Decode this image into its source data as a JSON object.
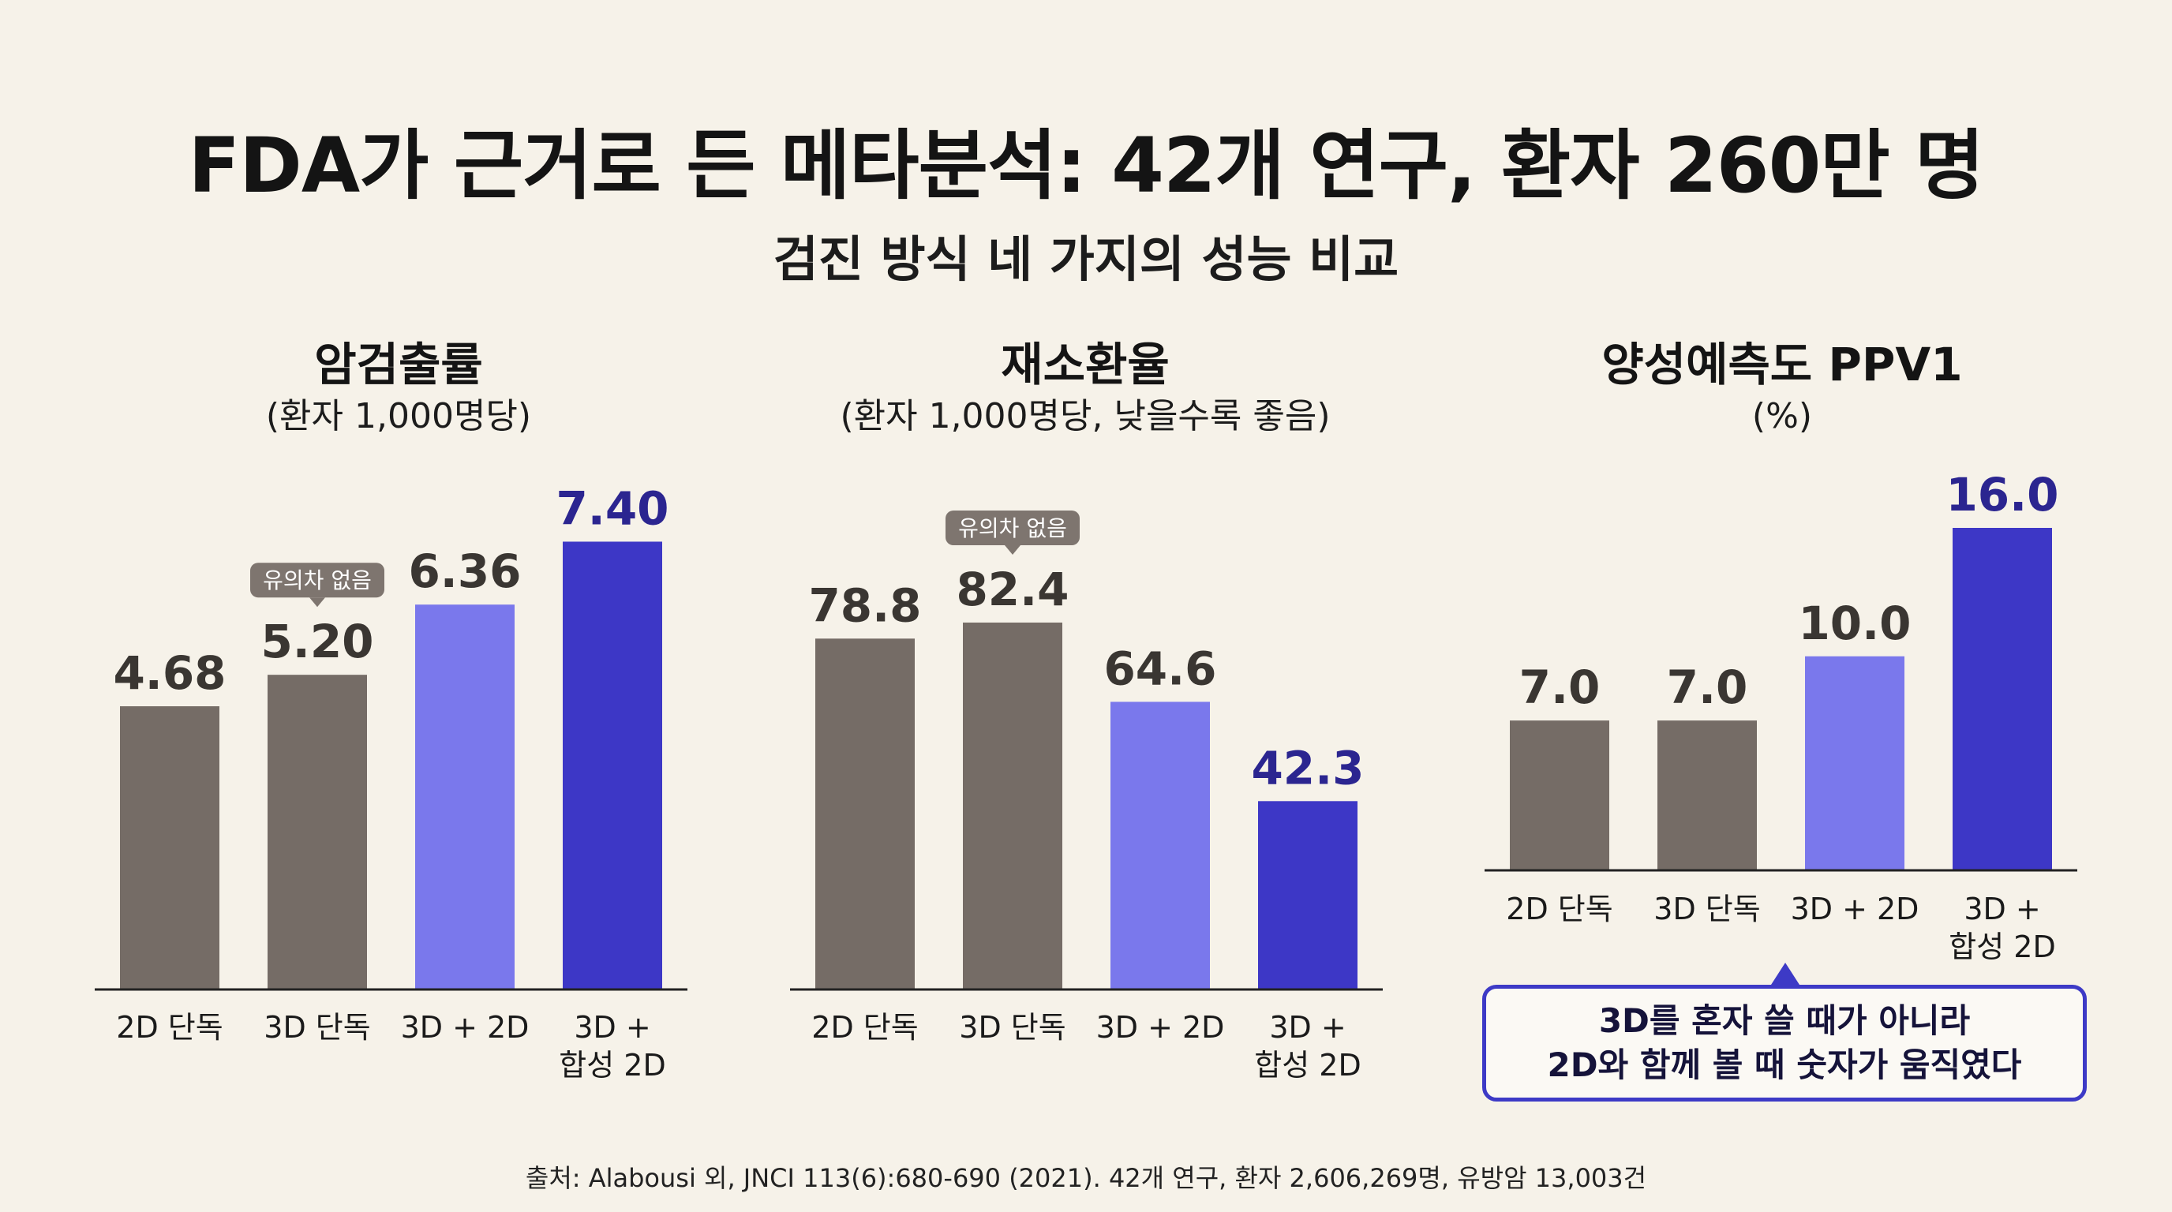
{
  "title": "FDA가 근거로 든 메타분석: 42개 연구, 환자 260만 명",
  "subtitle": "검진 방식 네 가지의 성능 비교",
  "colors": {
    "gray": "#756c66",
    "light_purple": "#7a78ec",
    "deep_purple": "#3d37c6",
    "highlight_text": "#2b2590",
    "value_text": "#3a3632"
  },
  "chart_data": [
    {
      "type": "bar",
      "title": "암검출률",
      "subtitle": "(환자 1,000명당)",
      "categories": [
        "2D 단독",
        "3D 단독",
        "3D + 2D",
        "3D +\n합성 2D"
      ],
      "values": [
        4.68,
        5.2,
        6.36,
        7.4
      ],
      "value_labels": [
        "4.68",
        "5.20",
        "6.36",
        "7.40"
      ],
      "bar_colors": [
        "gray",
        "gray",
        "light_purple",
        "deep_purple"
      ],
      "annotation": {
        "text": "유의차 없음",
        "category_index": 1
      }
    },
    {
      "type": "bar",
      "title": "재소환율",
      "subtitle": "(환자 1,000명당, 낮을수록 좋음)",
      "categories": [
        "2D 단독",
        "3D 단독",
        "3D + 2D",
        "3D +\n합성 2D"
      ],
      "values": [
        78.8,
        82.4,
        64.6,
        42.3
      ],
      "value_labels": [
        "78.8",
        "82.4",
        "64.6",
        "42.3"
      ],
      "bar_colors": [
        "gray",
        "gray",
        "light_purple",
        "deep_purple"
      ],
      "annotation": {
        "text": "유의차 없음",
        "category_index": 1
      }
    },
    {
      "type": "bar",
      "title": "양성예측도 PPV1",
      "subtitle": "(%)",
      "categories": [
        "2D 단독",
        "3D 단독",
        "3D + 2D",
        "3D +\n합성 2D"
      ],
      "values": [
        7.0,
        7.0,
        10.0,
        16.0
      ],
      "value_labels": [
        "7.0",
        "7.0",
        "10.0",
        "16.0"
      ],
      "bar_colors": [
        "gray",
        "gray",
        "light_purple",
        "deep_purple"
      ]
    }
  ],
  "note": {
    "line1": "3D를 혼자 쓸 때가 아니라",
    "line2": "2D와 함께 볼 때 숫자가 움직였다"
  },
  "source": "출처: Alabousi 외, JNCI 113(6):680-690 (2021). 42개 연구, 환자 2,606,269명, 유방암 13,003건"
}
